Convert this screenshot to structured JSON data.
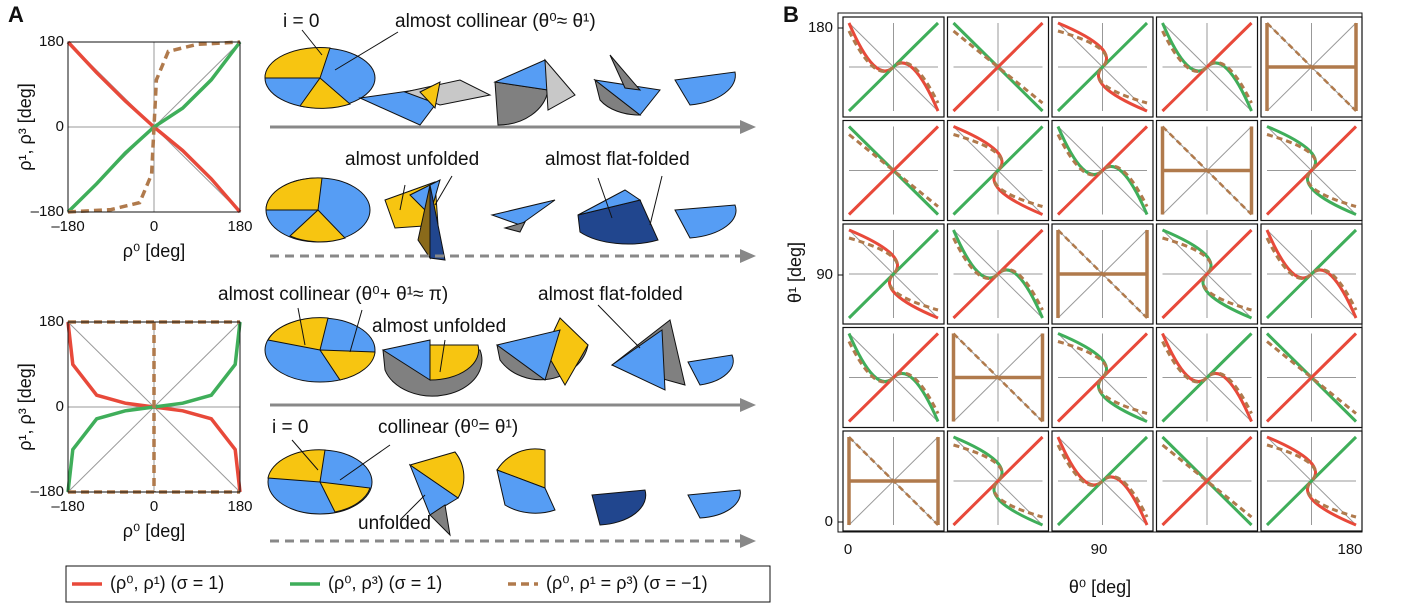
{
  "figure": {
    "panel_a": "A",
    "panel_b": "B",
    "annotations": [
      "i = 0",
      "almost collinear (θ⁰≈ θ¹)",
      "almost unfolded",
      "almost flat-folded",
      "almost collinear (θ⁰+ θ¹≈ π)",
      "almost flat-folded",
      "almost unfolded",
      "i = 0",
      "collinear (θ⁰= θ¹)",
      "unfolded"
    ]
  },
  "chart_data": [
    {
      "type": "line",
      "xlabel": "ρ⁰ [deg]",
      "ylabel": "ρ¹, ρ³ [deg]",
      "xlim": [
        -180,
        180
      ],
      "ylim": [
        -180,
        180
      ],
      "xticks": [
        {
          "value": -180,
          "label": "–180"
        },
        0,
        180
      ],
      "yticks": [
        {
          "value": -180,
          "label": "–180"
        },
        0,
        180
      ],
      "series": [
        {
          "name": "(ρ⁰, ρ¹)  (σ = 1)",
          "color": "#e8493a",
          "dash": false,
          "x": [
            -180,
            -120,
            -60,
            0,
            60,
            120,
            180
          ],
          "values": [
            180,
            115,
            55,
            0,
            -50,
            -110,
            -180
          ]
        },
        {
          "name": "(ρ⁰, ρ³)  (σ = 1)",
          "color": "#3fae5a",
          "dash": false,
          "x": [
            -180,
            -120,
            -60,
            0,
            60,
            120,
            180
          ],
          "values": [
            -180,
            -120,
            -55,
            0,
            40,
            100,
            180
          ]
        },
        {
          "name": "(ρ⁰, ρ¹ = ρ³)  (σ = −1)",
          "color": "#b07a4c",
          "dash": true,
          "x": [
            -180,
            -90,
            -30,
            -5,
            0,
            5,
            30,
            90,
            180
          ],
          "values": [
            -180,
            -175,
            -160,
            -100,
            0,
            100,
            160,
            175,
            180
          ]
        }
      ]
    },
    {
      "type": "line",
      "xlabel": "ρ⁰ [deg]",
      "ylabel": "ρ¹, ρ³ [deg]",
      "xlim": [
        -180,
        180
      ],
      "ylim": [
        -180,
        180
      ],
      "xticks": [
        {
          "value": -180,
          "label": "–180"
        },
        0,
        180
      ],
      "yticks": [
        {
          "value": -180,
          "label": "–180"
        },
        0,
        180
      ],
      "series": [
        {
          "color": "#e8493a",
          "dash": false,
          "x": [
            -180,
            -170,
            -120,
            -60,
            0,
            60,
            120,
            170,
            180
          ],
          "values": [
            180,
            90,
            25,
            8,
            0,
            -8,
            -25,
            -90,
            -180
          ]
        },
        {
          "color": "#3fae5a",
          "dash": false,
          "x": [
            -180,
            -170,
            -120,
            -60,
            0,
            60,
            120,
            170,
            180
          ],
          "values": [
            -180,
            -90,
            -25,
            -8,
            0,
            8,
            25,
            90,
            180
          ]
        },
        {
          "color": "#b07a4c",
          "dash": true,
          "x": [
            -180,
            180,
            null,
            0,
            0,
            null,
            -180,
            180
          ],
          "values": [
            180,
            180,
            null,
            180,
            -180,
            null,
            -180,
            -180
          ]
        }
      ]
    },
    {
      "type": "grid",
      "xlabel": "θ⁰ [deg]",
      "ylabel": "θ¹ [deg]",
      "xlim": [
        0,
        180
      ],
      "ylim": [
        0,
        180
      ],
      "xticks": [
        0,
        90,
        180
      ],
      "yticks": [
        0,
        90,
        180
      ]
    }
  ]
}
